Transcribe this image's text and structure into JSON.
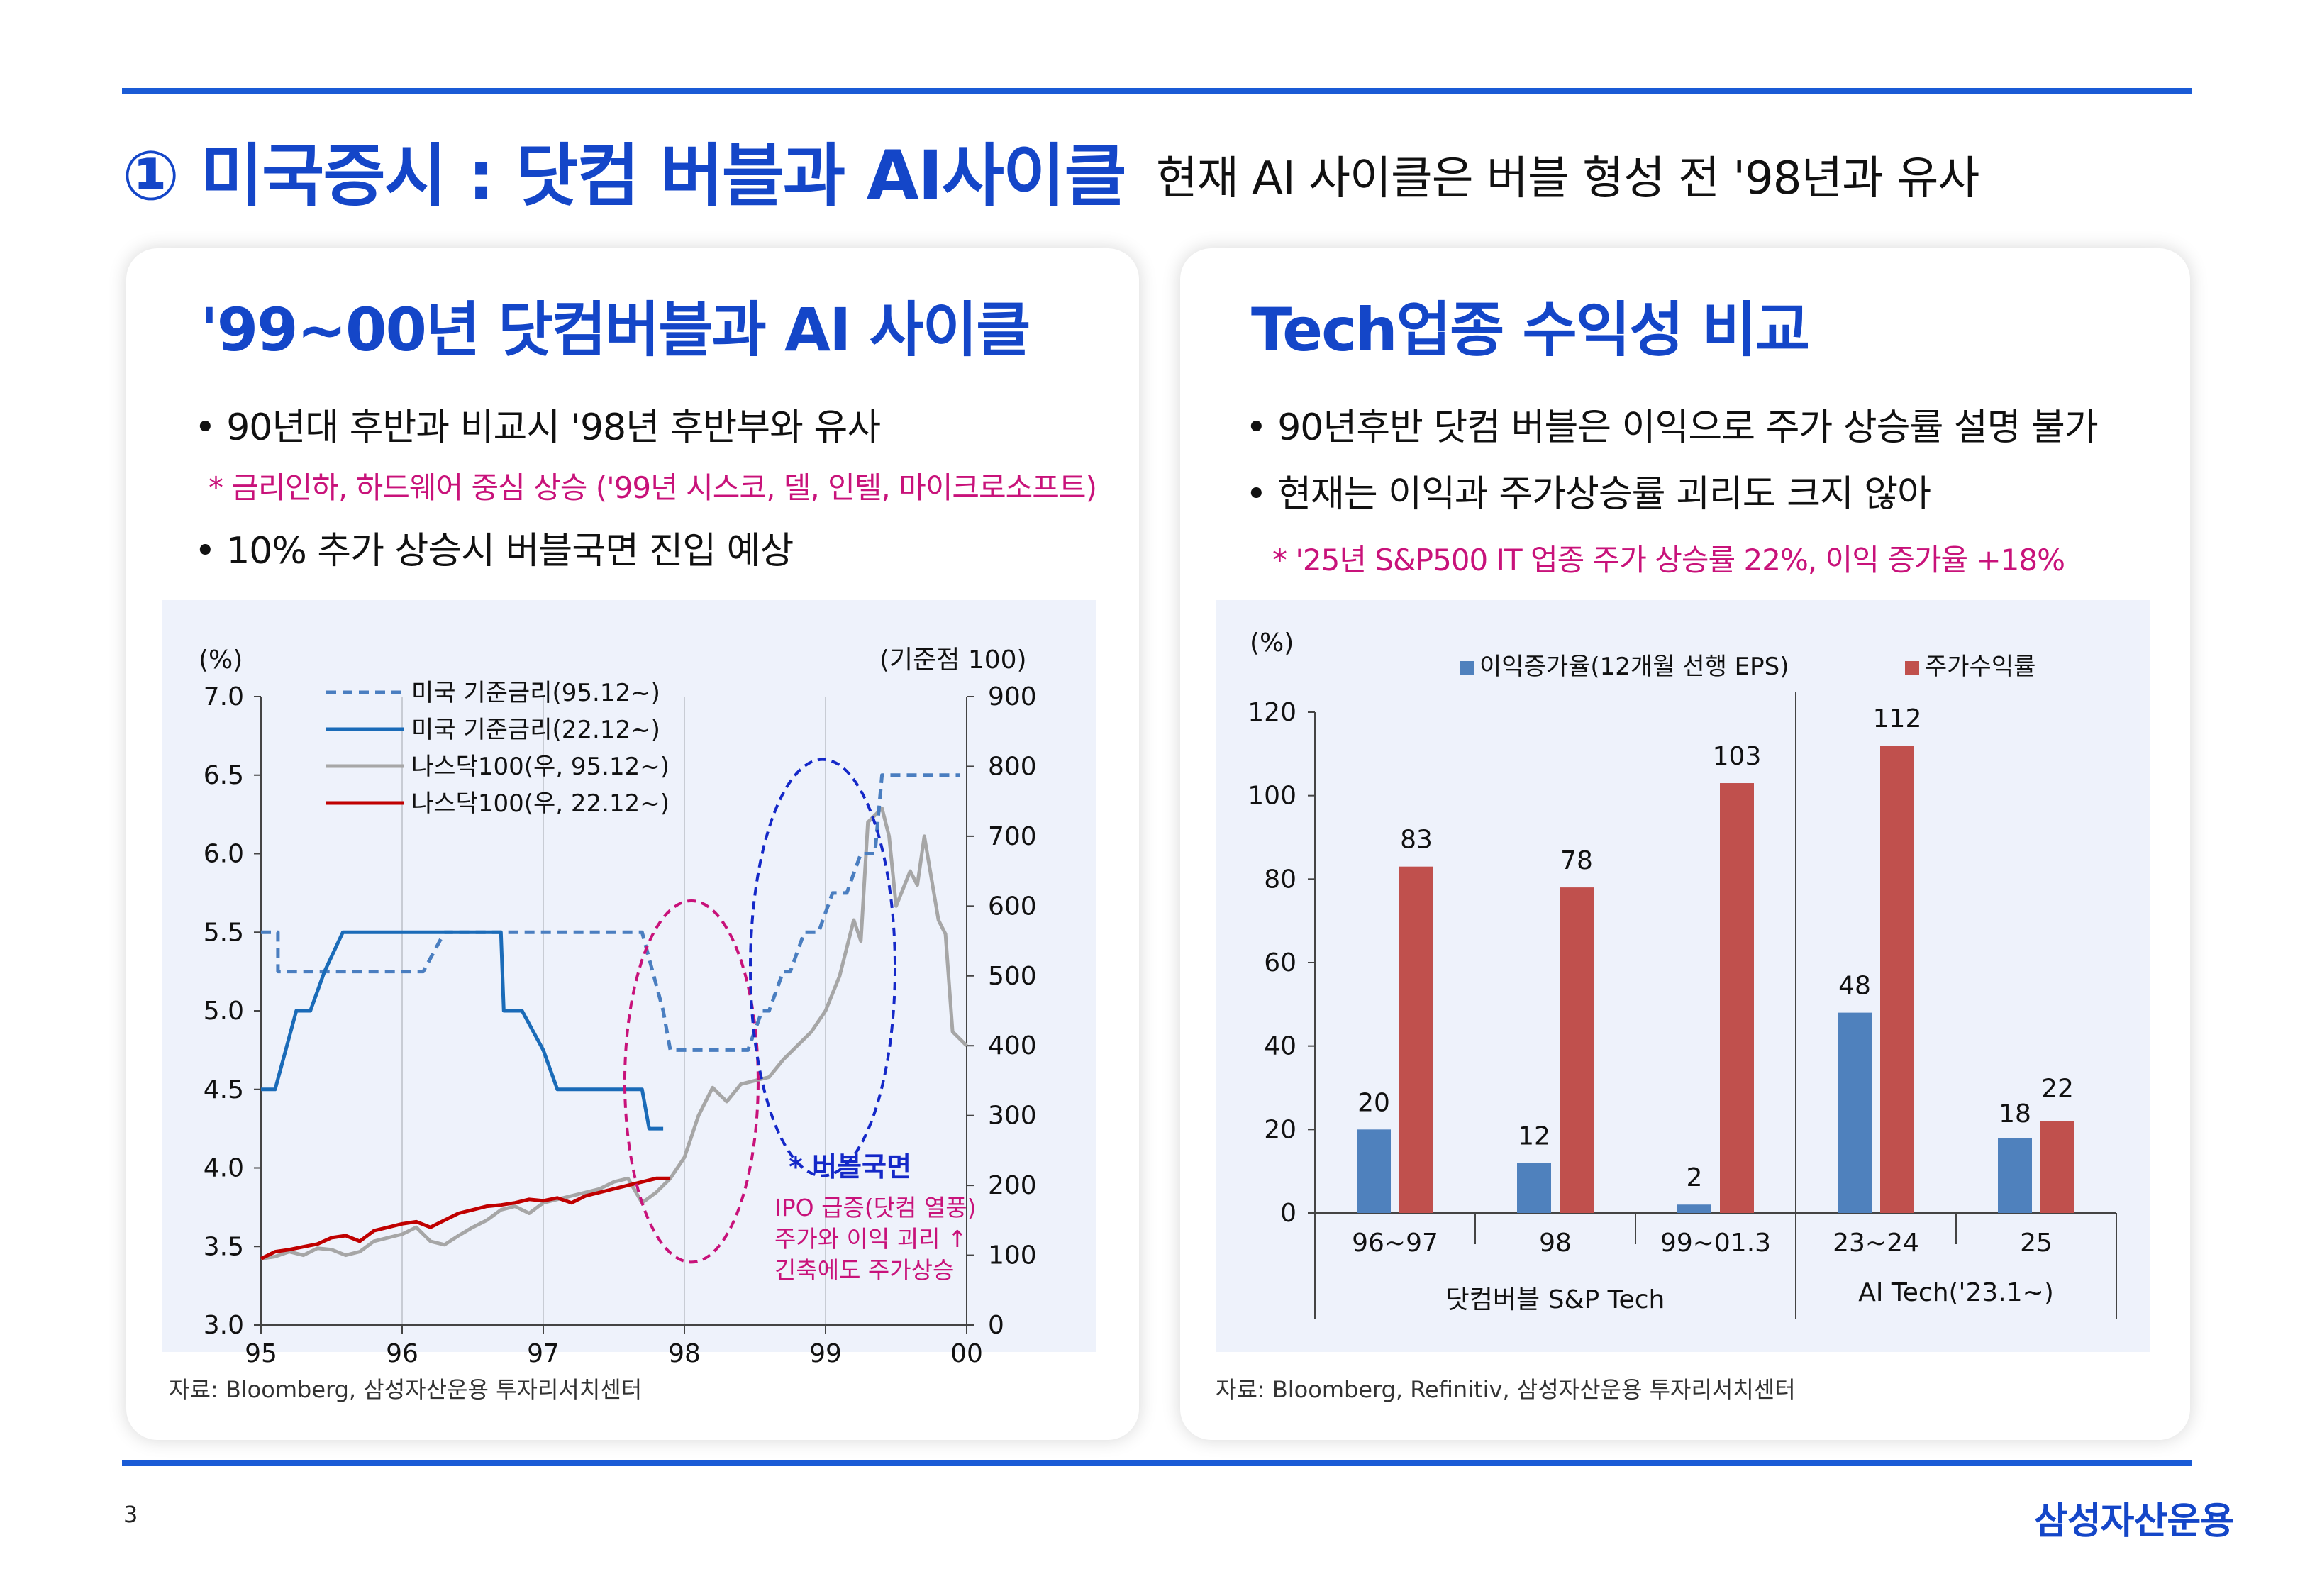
{
  "header": {
    "title": "① 미국증시 : 닷컴 버블과 AI사이클",
    "subtitle": "현재 AI 사이클은 버블 형성 전 '98년과 유사"
  },
  "left_card": {
    "title": "'99~00년 닷컴버블과 AI 사이클",
    "bullet1": "• 90년대 후반과 비교시 '98년 후반부와 유사",
    "note1": "* 금리인하, 하드웨어 중심 상승 ('99년 시스코, 델, 인텔, 마이크로소프트)",
    "bullet2": "• 10% 추가 상승시 버블국면 진입 예상",
    "source": "자료: Bloomberg, 삼성자산운용 투자리서치센터"
  },
  "right_card": {
    "title": "Tech업종 수익성 비교",
    "bullet1": "• 90년후반 닷컴 버블은 이익으로 주가 상승률 설명 불가",
    "bullet2": "• 현재는 이익과 주가상승률 괴리도 크지 않아",
    "note1": "* '25년 S&P500 IT 업종 주가 상승률 22%, 이익 증가율 +18%",
    "source": "자료: Bloomberg, Refinitiv, 삼성자산운용 투자리서치센터"
  },
  "footer": {
    "page": "3",
    "logo": "삼성자산운용"
  },
  "chart_data": [
    {
      "type": "line",
      "ylabel": "(%)",
      "y2label": "(기준점 100)",
      "ylim": [
        3.0,
        7.0
      ],
      "y2lim": [
        0,
        900
      ],
      "y_ticks": [
        "3.0",
        "3.5",
        "4.0",
        "4.5",
        "5.0",
        "5.5",
        "6.0",
        "6.5",
        "7.0"
      ],
      "y2_ticks": [
        "0",
        "100",
        "200",
        "300",
        "400",
        "500",
        "600",
        "700",
        "800",
        "900"
      ],
      "x_ticks": [
        "95",
        "96",
        "97",
        "98",
        "99",
        "00"
      ],
      "xlim": [
        95,
        100
      ],
      "colors": {
        "dashed_blue": "#4a7ec0",
        "solid_blue": "#1a6bb8",
        "gray": "#a6a6a6",
        "red": "#c00000",
        "pink": "#c8127a",
        "navy": "#1428c8"
      },
      "series": [
        {
          "name": "미국 기준금리(95.12~)",
          "axis": "left",
          "style": "dashed",
          "x": [
            95.0,
            95.12,
            95.12,
            96.15,
            96.15,
            96.3,
            96.3,
            97.7,
            97.85,
            97.9,
            98.4,
            98.45,
            98.55,
            98.6,
            98.7,
            98.75,
            98.85,
            98.95,
            99.05,
            99.15,
            99.25,
            99.35,
            99.4,
            99.95
          ],
          "y": [
            5.5,
            5.5,
            5.25,
            5.25,
            5.25,
            5.5,
            5.5,
            5.5,
            5.0,
            4.75,
            4.75,
            4.75,
            5.0,
            5.0,
            5.25,
            5.25,
            5.5,
            5.5,
            5.75,
            5.75,
            6.0,
            6.0,
            6.5,
            6.5
          ]
        },
        {
          "name": "미국 기준금리(22.12~)",
          "axis": "left",
          "style": "solid",
          "x": [
            95.0,
            95.1,
            95.25,
            95.35,
            95.45,
            95.58,
            96.7,
            96.72,
            96.85,
            97.0,
            97.1,
            97.7,
            97.75,
            97.85
          ],
          "y": [
            4.5,
            4.5,
            5.0,
            5.0,
            5.25,
            5.5,
            5.5,
            5.0,
            5.0,
            4.75,
            4.5,
            4.5,
            4.25,
            4.25
          ]
        },
        {
          "name": "나스닥100(우, 95.12~)",
          "axis": "right",
          "x": [
            95.0,
            95.1,
            95.2,
            95.3,
            95.4,
            95.5,
            95.6,
            95.7,
            95.8,
            95.9,
            96.0,
            96.1,
            96.2,
            96.3,
            96.4,
            96.5,
            96.6,
            96.7,
            96.8,
            96.9,
            97.0,
            97.1,
            97.2,
            97.3,
            97.4,
            97.5,
            97.6,
            97.7,
            97.8,
            97.9,
            98.0,
            98.1,
            98.2,
            98.3,
            98.4,
            98.5,
            98.6,
            98.7,
            98.8,
            98.9,
            99.0,
            99.1,
            99.2,
            99.25,
            99.3,
            99.4,
            99.45,
            99.5,
            99.6,
            99.65,
            99.7,
            99.8,
            99.85,
            99.9,
            100.0
          ],
          "y": [
            95,
            98,
            105,
            100,
            110,
            108,
            100,
            105,
            120,
            125,
            130,
            140,
            120,
            115,
            128,
            140,
            150,
            165,
            170,
            160,
            175,
            180,
            185,
            190,
            195,
            205,
            210,
            175,
            190,
            210,
            240,
            300,
            340,
            320,
            345,
            350,
            355,
            380,
            400,
            420,
            450,
            500,
            580,
            550,
            720,
            740,
            700,
            600,
            650,
            630,
            700,
            580,
            560,
            420,
            400
          ]
        },
        {
          "name": "나스닥100(우, 22.12~)",
          "axis": "right",
          "x": [
            95.0,
            95.1,
            95.2,
            95.3,
            95.4,
            95.5,
            95.6,
            95.7,
            95.8,
            95.9,
            96.0,
            96.1,
            96.2,
            96.3,
            96.4,
            96.5,
            96.6,
            96.7,
            96.8,
            96.9,
            97.0,
            97.1,
            97.2,
            97.3,
            97.4,
            97.5,
            97.6,
            97.7,
            97.8,
            97.9
          ],
          "y": [
            95,
            105,
            108,
            112,
            116,
            125,
            128,
            120,
            135,
            140,
            145,
            148,
            140,
            150,
            160,
            165,
            170,
            172,
            175,
            180,
            178,
            182,
            175,
            185,
            190,
            195,
            200,
            205,
            210,
            210
          ]
        }
      ],
      "annotations": [
        {
          "text": "* 버블국면",
          "color": "navy"
        },
        {
          "text": "IPO 급증(닷컴 열풍)",
          "color": "pink"
        },
        {
          "text": "주가와 이익 괴리 ↑",
          "color": "pink"
        },
        {
          "text": "긴축에도 주가상승",
          "color": "pink"
        }
      ]
    },
    {
      "type": "bar",
      "ylabel": "(%)",
      "ylim": [
        0,
        120
      ],
      "y_ticks": [
        "0",
        "20",
        "40",
        "60",
        "80",
        "100",
        "120"
      ],
      "categories": [
        "96~97",
        "98",
        "99~01.3",
        "23~24",
        "25"
      ],
      "groups": [
        {
          "label": "닷컴버블 S&P Tech",
          "categories": [
            "96~97",
            "98",
            "99~01.3"
          ]
        },
        {
          "label": "AI Tech('23.1~)",
          "categories": [
            "23~24",
            "25"
          ]
        }
      ],
      "series": [
        {
          "name": "이익증가율(12개월 선행 EPS)",
          "color": "#4f81bd",
          "values": [
            20,
            12,
            2,
            48,
            18
          ]
        },
        {
          "name": "주가수익률",
          "color": "#c0504d",
          "values": [
            83,
            78,
            103,
            112,
            22
          ]
        }
      ]
    }
  ]
}
